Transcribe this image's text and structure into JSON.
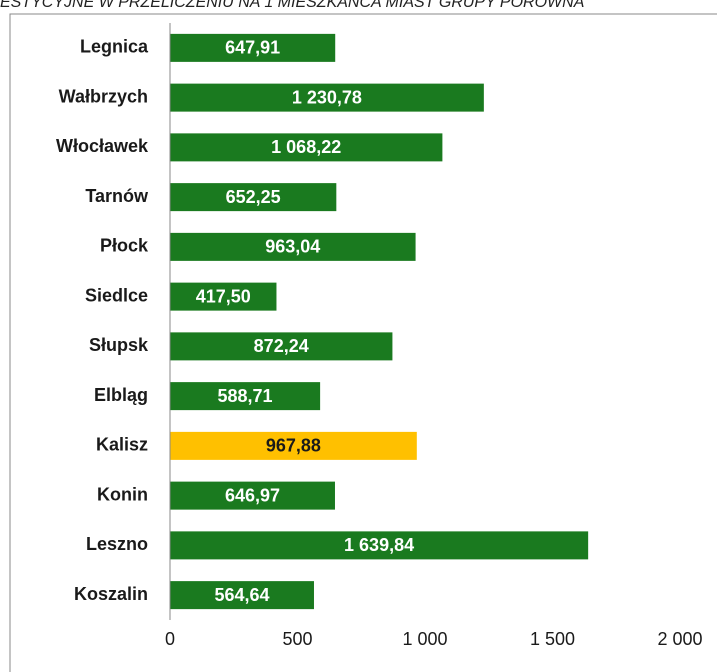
{
  "chart_data": {
    "type": "hbar",
    "title": "ESTYCYJNE W PRZELICZENIU NA 1 MIESZKAŃCA MIAST GRUPY PORÓWNA",
    "categories": [
      "Legnica",
      "Wałbrzych",
      "Włocławek",
      "Tarnów",
      "Płock",
      "Siedlce",
      "Słupsk",
      "Elbląg",
      "Kalisz",
      "Konin",
      "Leszno",
      "Koszalin"
    ],
    "values": [
      647.91,
      1230.78,
      1068.22,
      652.25,
      963.04,
      417.5,
      872.24,
      588.71,
      967.88,
      646.97,
      1639.84,
      564.64
    ],
    "value_labels": [
      "647,91",
      "1 230,78",
      "1 068,22",
      "652,25",
      "963,04",
      "417,50",
      "872,24",
      "588,71",
      "967,88",
      "646,97",
      "1 639,84",
      "564,64"
    ],
    "colors": [
      "#1a7a1f",
      "#1a7a1f",
      "#1a7a1f",
      "#1a7a1f",
      "#1a7a1f",
      "#1a7a1f",
      "#1a7a1f",
      "#1a7a1f",
      "#ffc000",
      "#1a7a1f",
      "#1a7a1f",
      "#1a7a1f"
    ],
    "xlim": [
      0,
      2000
    ],
    "xticks": [
      0,
      500,
      {
        "value": 1000,
        "label": "1 000"
      },
      {
        "value": 1500,
        "label": "1 500"
      },
      {
        "value": 2000,
        "label": "2 000"
      }
    ]
  }
}
